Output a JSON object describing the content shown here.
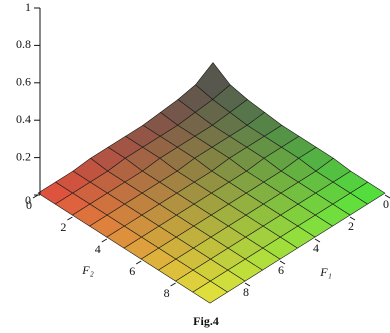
{
  "chart_data": {
    "type": "surface",
    "caption": "Fig.4",
    "xlabel": "F₁",
    "ylabel": "F₂",
    "x": [
      0,
      1,
      2,
      3,
      4,
      5,
      6,
      7,
      8,
      9,
      10
    ],
    "y": [
      0,
      1,
      2,
      3,
      4,
      5,
      6,
      7,
      8,
      9,
      10
    ],
    "z": [
      [
        0.12,
        0.06,
        0.04,
        0.03,
        0.02,
        0.02,
        0.02,
        0.02,
        0.01,
        0.01,
        0.01
      ],
      [
        0.06,
        0.04,
        0.03,
        0.02,
        0.02,
        0.02,
        0.02,
        0.01,
        0.01,
        0.01,
        0.01
      ],
      [
        0.04,
        0.03,
        0.02,
        0.02,
        0.02,
        0.02,
        0.01,
        0.01,
        0.01,
        0.01,
        0.01
      ],
      [
        0.03,
        0.02,
        0.02,
        0.02,
        0.02,
        0.01,
        0.01,
        0.01,
        0.01,
        0.01,
        0.01
      ],
      [
        0.02,
        0.02,
        0.02,
        0.02,
        0.01,
        0.01,
        0.01,
        0.01,
        0.01,
        0.01,
        0.01
      ],
      [
        0.02,
        0.02,
        0.02,
        0.01,
        0.01,
        0.01,
        0.01,
        0.01,
        0.01,
        0.01,
        0.01
      ],
      [
        0.02,
        0.02,
        0.01,
        0.01,
        0.01,
        0.01,
        0.01,
        0.01,
        0.01,
        0.01,
        0.01
      ],
      [
        0.02,
        0.01,
        0.01,
        0.01,
        0.01,
        0.01,
        0.01,
        0.01,
        0.01,
        0.01,
        0.01
      ],
      [
        0.01,
        0.01,
        0.01,
        0.01,
        0.01,
        0.01,
        0.01,
        0.01,
        0.01,
        0.01,
        0.01
      ],
      [
        0.01,
        0.01,
        0.01,
        0.01,
        0.01,
        0.01,
        0.01,
        0.01,
        0.01,
        0.01,
        0.01
      ],
      [
        0.01,
        0.01,
        0.01,
        0.01,
        0.01,
        0.01,
        0.01,
        0.01,
        0.01,
        0.01,
        0.01
      ]
    ],
    "xlim": [
      0,
      10
    ],
    "ylim": [
      0,
      10
    ],
    "zlim": [
      0,
      1
    ],
    "xticks": [
      0,
      2,
      4,
      6,
      8
    ],
    "yticks": [
      0,
      2,
      4,
      6,
      8
    ],
    "zticks": [
      0,
      0.2,
      0.4,
      0.6,
      0.8,
      1
    ],
    "colors": [
      "#505050",
      "#e64b3c",
      "#4be63c",
      "#e6e63c"
    ]
  }
}
